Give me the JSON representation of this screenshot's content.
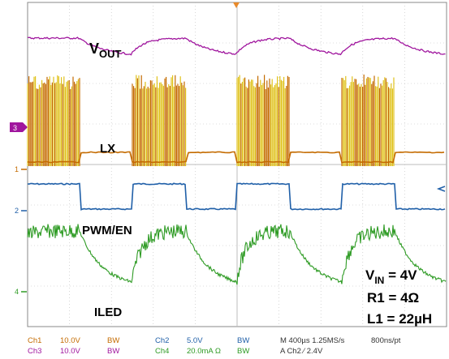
{
  "colors": {
    "ch1": "#c46b00",
    "ch1_burst": "#e0c21b",
    "ch2": "#1f5fa8",
    "ch3": "#a0169e",
    "ch4": "#2e9b24",
    "grid": "#bdbdbd",
    "ref": "#e88a2b"
  },
  "markers": {
    "ch3": "3",
    "ch1": "1",
    "ch2": "2",
    "ch4": "4"
  },
  "labels": {
    "vout_main": "V",
    "vout_sub": "OUT",
    "lx": "LX",
    "pwm": "PWM/EN",
    "iled": "ILED",
    "vin_main": "V",
    "vin_sub": "IN",
    "vin_value": " = 4V",
    "r1": "R1 = 4Ω",
    "l1": "L1 = 22µH"
  },
  "status": {
    "ch1_name": "Ch1",
    "ch1_scale": "10.0V",
    "ch1_bw": "BW",
    "ch2_name": "Ch2",
    "ch2_scale": "5.0V",
    "ch2_bw": "BW",
    "ch3_name": "Ch3",
    "ch3_scale": "10.0V",
    "ch3_bw": "BW",
    "ch4_name": "Ch4",
    "ch4_scale": "20.0mA Ω",
    "ch4_bw": "BW",
    "timebase": "M 400µs 1.25MS/s",
    "resolution": "800ns/pt",
    "trigger": "A  Ch2  ⁄  2.4V"
  }
}
